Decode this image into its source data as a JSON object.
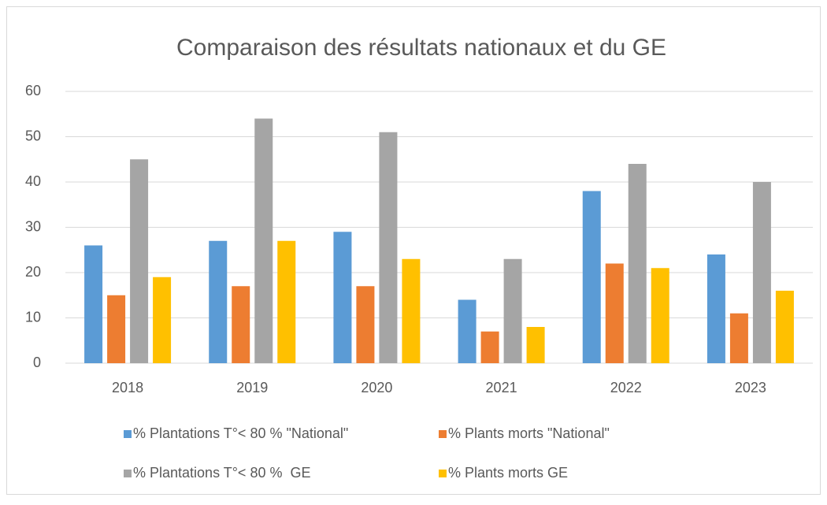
{
  "chart_data": {
    "type": "bar",
    "title": "Comparaison des résultats nationaux et du GE",
    "categories": [
      "2018",
      "2019",
      "2020",
      "2021",
      "2022",
      "2023"
    ],
    "series": [
      {
        "name": "% Plantations T°< 80 % \"National\"",
        "color": "#5b9bd5",
        "values": [
          26,
          27,
          29,
          14,
          38,
          24
        ]
      },
      {
        "name": "% Plants morts \"National\"",
        "color": "#ed7d31",
        "values": [
          15,
          17,
          17,
          7,
          22,
          11
        ]
      },
      {
        "name": "% Plantations T°< 80 %  GE",
        "color": "#a5a5a5",
        "values": [
          45,
          54,
          51,
          23,
          44,
          40
        ]
      },
      {
        "name": "% Plants morts GE",
        "color": "#ffc000",
        "values": [
          19,
          27,
          23,
          8,
          21,
          16
        ]
      }
    ],
    "ylim": [
      0,
      60
    ],
    "yticks": [
      0,
      10,
      20,
      30,
      40,
      50,
      60
    ],
    "grid": true,
    "legend": "bottom"
  }
}
